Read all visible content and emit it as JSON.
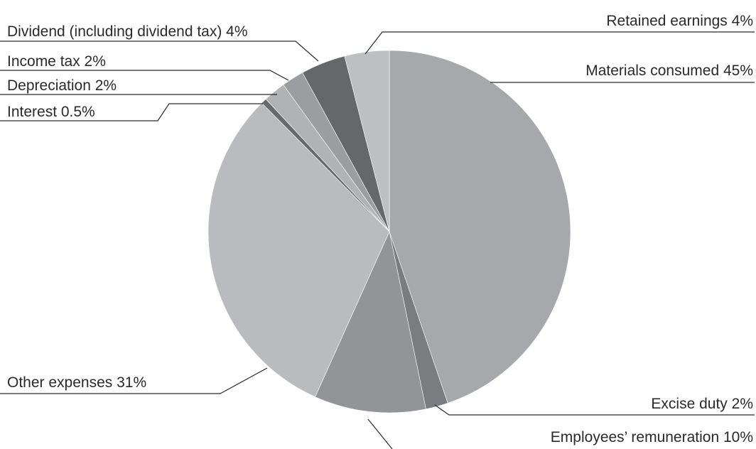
{
  "chart_data": {
    "type": "pie",
    "title": "",
    "slices": [
      {
        "label": "Materials consumed 45%",
        "value": 45,
        "color": "#a7a8ab"
      },
      {
        "label": "Excise duty 2%",
        "value": 2,
        "color": "#7b7c80"
      },
      {
        "label": "Employees’ remuneration 10%",
        "value": 10,
        "color": "#939497"
      },
      {
        "label": "Other expenses 31%",
        "value": 31,
        "color": "#babbbe"
      },
      {
        "label": "Interest 0.5%",
        "value": 0.5,
        "color": "#68696d"
      },
      {
        "label": "Depreciation 2%",
        "value": 2,
        "color": "#b1b2b5"
      },
      {
        "label": "Income tax 2%",
        "value": 2,
        "color": "#9c9da0"
      },
      {
        "label": "Dividend (including dividend tax) 4%",
        "value": 4,
        "color": "#66676b"
      },
      {
        "label": "Retained earnings 4%",
        "value": 4,
        "color": "#bebfc2"
      }
    ],
    "start_angle": "12 o'clock",
    "direction": "clockwise",
    "legend": "none"
  }
}
